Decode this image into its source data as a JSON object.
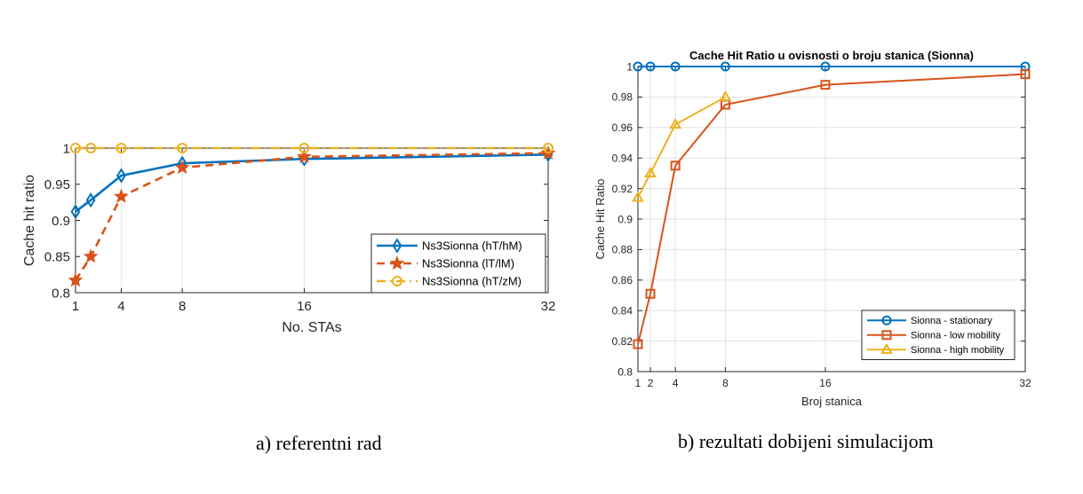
{
  "captions": {
    "a": "a) referentni rad",
    "b": "b) rezultati dobijeni simulacijom"
  },
  "chart_data": [
    {
      "type": "line",
      "title": "",
      "xlabel": "No. STAs",
      "ylabel": "Cache hit ratio",
      "xlim": [
        1,
        32
      ],
      "ylim": [
        0.8,
        1.0
      ],
      "x_ticks": [
        1,
        4,
        8,
        16,
        32
      ],
      "y_ticks": [
        0.8,
        0.85,
        0.9,
        0.95,
        1
      ],
      "y_tick_labels": [
        "0.8",
        "0.85",
        "0.9",
        "0.95",
        "1"
      ],
      "grid": "vertical",
      "legend_position": "lower-right",
      "series": [
        {
          "name": "Ns3Sionna (hT/hM)",
          "x": [
            1,
            2,
            4,
            8,
            16,
            32
          ],
          "y": [
            0.912,
            0.928,
            0.962,
            0.979,
            0.985,
            0.991
          ],
          "color": "#0072BD",
          "marker": "diamond",
          "dash": "solid"
        },
        {
          "name": "Ns3Sionna (lT/lM)",
          "x": [
            1,
            2,
            4,
            8,
            16,
            32
          ],
          "y": [
            0.817,
            0.85,
            0.933,
            0.973,
            0.988,
            0.993
          ],
          "color": "#D95319",
          "marker": "star",
          "dash": "dashed"
        },
        {
          "name": "Ns3Sionna (hT/zM)",
          "x": [
            1,
            2,
            4,
            8,
            16,
            32
          ],
          "y": [
            1.0,
            1.0,
            1.0,
            1.0,
            1.0,
            1.0
          ],
          "color": "#EDB120",
          "marker": "circle",
          "dash": "dashdot"
        }
      ]
    },
    {
      "type": "line",
      "title": "Cache Hit Ratio u ovisnosti o broju stanica (Sionna)",
      "xlabel": "Broj stanica",
      "ylabel": "Cache Hit Ratio",
      "xlim": [
        1,
        32
      ],
      "ylim": [
        0.8,
        1.0
      ],
      "x_ticks": [
        1,
        2,
        4,
        8,
        16,
        32
      ],
      "y_ticks": [
        0.8,
        0.82,
        0.84,
        0.86,
        0.88,
        0.9,
        0.92,
        0.94,
        0.96,
        0.98,
        1
      ],
      "y_tick_labels": [
        "0.8",
        "0.82",
        "0.84",
        "0.86",
        "0.88",
        "0.9",
        "0.92",
        "0.94",
        "0.96",
        "0.98",
        "1"
      ],
      "grid": "both",
      "legend_position": "lower-right",
      "series": [
        {
          "name": "Sionna - stationary",
          "x": [
            1,
            2,
            4,
            8,
            16,
            32
          ],
          "y": [
            1.0,
            1.0,
            1.0,
            1.0,
            1.0,
            1.0
          ],
          "color": "#0072BD",
          "marker": "circle",
          "dash": "solid"
        },
        {
          "name": "Sionna - low mobility",
          "x": [
            1,
            2,
            4,
            8,
            16,
            32
          ],
          "y": [
            0.818,
            0.851,
            0.935,
            0.975,
            0.988,
            0.995
          ],
          "color": "#D95319",
          "marker": "square",
          "dash": "solid"
        },
        {
          "name": "Sionna - high mobility",
          "x": [
            1,
            2,
            4,
            8
          ],
          "y": [
            0.914,
            0.93,
            0.962,
            0.98
          ],
          "color": "#EDB120",
          "marker": "triangle",
          "dash": "solid"
        }
      ]
    }
  ]
}
